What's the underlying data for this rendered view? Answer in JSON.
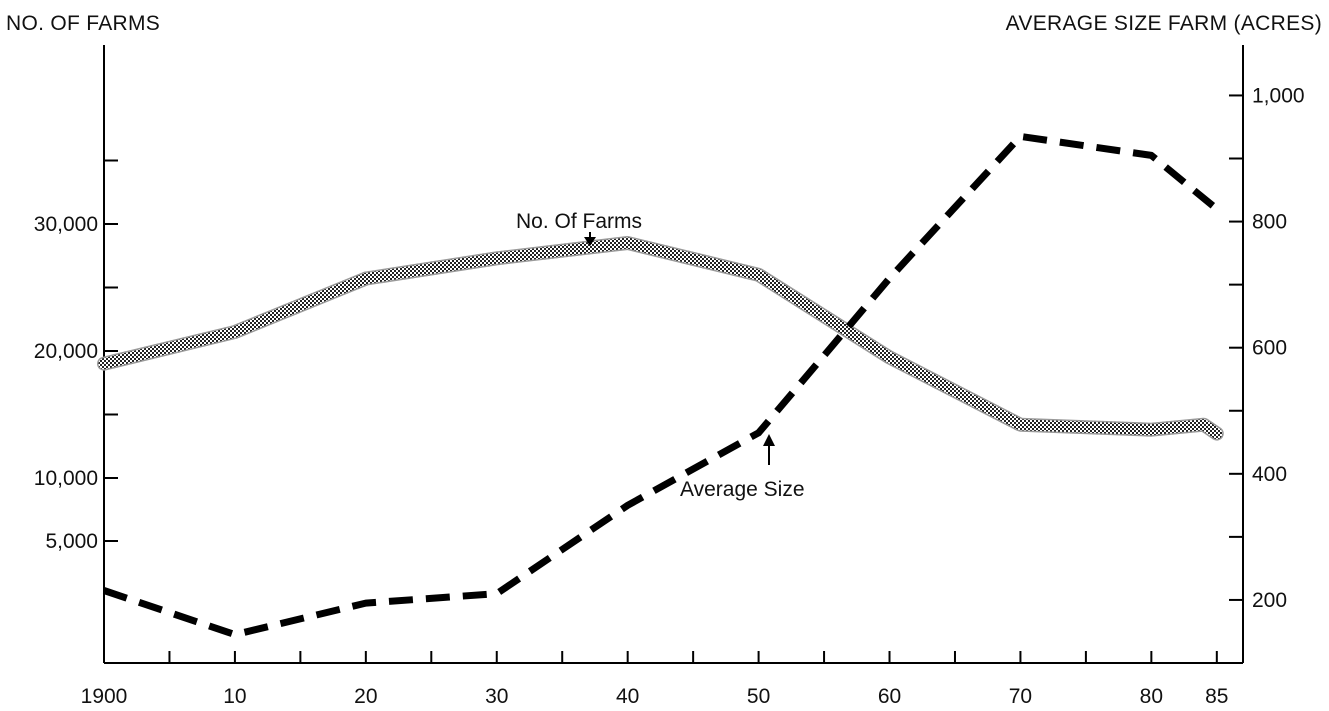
{
  "chart_data": {
    "type": "line",
    "title": "",
    "ylabel_left": "NO. OF FARMS",
    "ylabel_right": "AVERAGE SIZE FARM (ACRES)",
    "xlabel": "",
    "x_ticks": [
      1900,
      1910,
      1920,
      1930,
      1940,
      1950,
      1960,
      1970,
      1980,
      1985
    ],
    "x_tick_labels": [
      "1900",
      "10",
      "20",
      "30",
      "40",
      "50",
      "60",
      "70",
      "80",
      "85"
    ],
    "xlim": [
      1900,
      1987
    ],
    "left_axis": {
      "tick_labels": [
        {
          "label": "30,000",
          "value": 30000
        },
        {
          "label": "20,000",
          "value": 20000
        },
        {
          "label": "10,000",
          "value": 10000
        },
        {
          "label": "5,000",
          "value": 5000
        }
      ],
      "note": "left scale compressed below 10,000"
    },
    "right_axis": {
      "ylim": [
        100,
        1080
      ],
      "tick_labels": [
        {
          "label": "200",
          "value": 200
        },
        {
          "label": "400",
          "value": 400
        },
        {
          "label": "600",
          "value": 600
        },
        {
          "label": "800",
          "value": 800
        },
        {
          "label": "1,000",
          "value": 1000
        }
      ]
    },
    "series": [
      {
        "name": "No. Of Farms",
        "axis": "left",
        "style": "stippled",
        "color": "#8a8a8a",
        "x": [
          1900,
          1910,
          1920,
          1930,
          1940,
          1950,
          1960,
          1970,
          1980,
          1984,
          1985
        ],
        "values": [
          19000,
          21500,
          25700,
          27300,
          28500,
          26000,
          19500,
          14200,
          13800,
          14200,
          13500
        ]
      },
      {
        "name": "Average Size",
        "axis": "right",
        "style": "dashed",
        "color": "#000000",
        "x": [
          1900,
          1910,
          1920,
          1930,
          1940,
          1950,
          1960,
          1970,
          1980,
          1985
        ],
        "values": [
          215,
          145,
          195,
          210,
          350,
          465,
          710,
          935,
          905,
          820
        ]
      }
    ],
    "annotations": [
      {
        "text": "No. Of Farms",
        "points_to_x": 1938
      },
      {
        "text": "Average Size",
        "points_to_x": 1952
      }
    ]
  }
}
